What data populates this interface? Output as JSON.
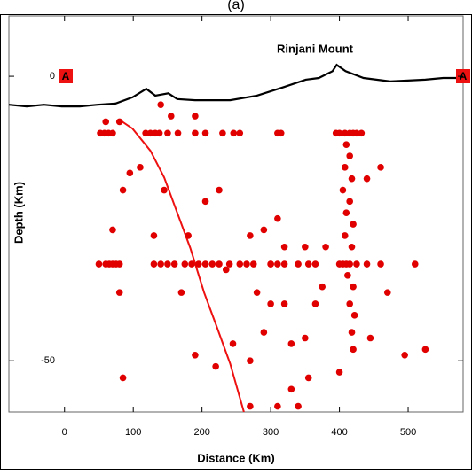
{
  "chart_data": {
    "type": "scatter",
    "panel_label": "(a)",
    "annotation": "Rinjani Mount",
    "marker_left": "A",
    "marker_right": "A",
    "xlabel": "Distance (Km)",
    "ylabel": "Depth (Km)",
    "xlim": [
      -81,
      580
    ],
    "ylim": [
      -59,
      10.6
    ],
    "xticks": [
      0,
      100,
      200,
      300,
      400,
      500
    ],
    "yticks": [
      0,
      -50
    ],
    "profile": {
      "color": "#000000",
      "x": [
        -81,
        -55,
        -30,
        -4,
        22,
        48,
        74,
        99,
        119,
        132,
        151,
        164,
        190,
        241,
        280,
        319,
        351,
        370,
        390,
        396,
        409,
        435,
        474,
        525,
        551,
        579
      ],
      "y": [
        -5.0,
        -5.3,
        -5.0,
        -5.3,
        -5.3,
        -5.0,
        -4.8,
        -3.7,
        -2.2,
        -3.4,
        -3.0,
        -4.0,
        -4.2,
        -4.2,
        -3.4,
        -1.9,
        -0.6,
        -0.3,
        0.9,
        2.0,
        0.9,
        -0.3,
        -0.9,
        -0.6,
        -0.3,
        -0.3
      ]
    },
    "slab": {
      "color": "#ee1111",
      "x": [
        83,
        99,
        125,
        145,
        164,
        183,
        203,
        222,
        241,
        261
      ],
      "y": [
        -7.9,
        -9.2,
        -13.1,
        -17.8,
        -24,
        -30.2,
        -38,
        -44.2,
        -50.5,
        -59
      ]
    },
    "events": {
      "color": "#e00000",
      "x": [
        52,
        58,
        64,
        70,
        118,
        125,
        132,
        138,
        150,
        165,
        190,
        205,
        230,
        246,
        255,
        310,
        315,
        395,
        400,
        408,
        415,
        420,
        425,
        432,
        140,
        155,
        190,
        50,
        60,
        65,
        70,
        75,
        80,
        130,
        140,
        150,
        160,
        175,
        185,
        195,
        205,
        215,
        225,
        240,
        255,
        265,
        275,
        300,
        310,
        320,
        340,
        355,
        365,
        400,
        405,
        410,
        415,
        425,
        440,
        460,
        510,
        410,
        415,
        408,
        418,
        405,
        415,
        410,
        420,
        408,
        418,
        412,
        420,
        415,
        422,
        418,
        400,
        445,
        420,
        60,
        80,
        95,
        85,
        70,
        80,
        85,
        110,
        145,
        130,
        180,
        170,
        205,
        225,
        235,
        270,
        290,
        300,
        280,
        300,
        320,
        290,
        245,
        270,
        190,
        220,
        330,
        350,
        355,
        340,
        270,
        310,
        330,
        365,
        375,
        470,
        495,
        525,
        350,
        310,
        320,
        440,
        460,
        380
      ],
      "y": [
        -10,
        -10,
        -10,
        -10,
        -10,
        -10,
        -10,
        -10,
        -10,
        -10,
        -10,
        -10,
        -10,
        -10,
        -10,
        -10,
        -10,
        -10,
        -10,
        -10,
        -10,
        -10,
        -10,
        -10,
        -5,
        -7,
        -7,
        -33,
        -33,
        -33,
        -33,
        -33,
        -33,
        -33,
        -33,
        -33,
        -33,
        -33,
        -33,
        -33,
        -33,
        -33,
        -33,
        -33,
        -33,
        -33,
        -33,
        -33,
        -33,
        -33,
        -33,
        -33,
        -33,
        -33,
        -33,
        -33,
        -33,
        -33,
        -33,
        -33,
        -33,
        -12,
        -14,
        -16,
        -18,
        -20,
        -22,
        -24,
        -26,
        -28,
        -30,
        -35,
        -37,
        -40,
        -42,
        -45,
        -52,
        -46,
        -48,
        -8,
        -8,
        -17,
        -20,
        -27,
        -38,
        -53,
        -16,
        -20,
        -28,
        -28,
        -38,
        -22,
        -20,
        -34,
        -28,
        -27,
        -33,
        -38,
        -40,
        -40,
        -45,
        -47,
        -50,
        -49,
        -51,
        -47,
        -46,
        -53,
        -58,
        -58,
        -58,
        -55,
        -40,
        -37,
        -38,
        -49,
        -48,
        -30,
        -25,
        -30,
        -18,
        -16,
        -30
      ]
    }
  }
}
